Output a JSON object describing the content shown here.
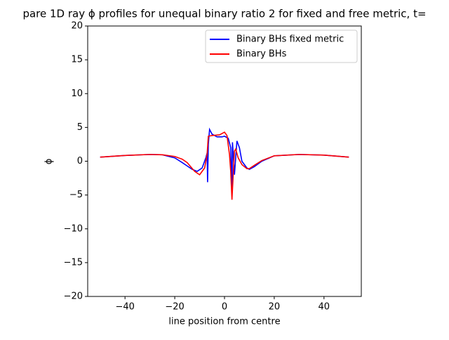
{
  "chart_data": {
    "type": "line",
    "title": "pare 1D ray ϕ profiles for unequal binary ratio 2 for fixed and free metric, t=",
    "x_label": "line position from centre",
    "y_label": "ϕ",
    "xlim": [
      -55,
      55
    ],
    "ylim": [
      -20,
      20
    ],
    "xticks": [
      {
        "value": -40,
        "label": "−40"
      },
      {
        "value": -20,
        "label": "−20"
      },
      0,
      20,
      40
    ],
    "yticks": [
      {
        "value": -20,
        "label": "−20"
      },
      {
        "value": -15,
        "label": "−15"
      },
      {
        "value": -10,
        "label": "−10"
      },
      {
        "value": -5,
        "label": "−5"
      },
      0,
      5,
      10,
      15,
      20
    ],
    "legend": "upper right",
    "series": [
      {
        "name": "Binary BHs fixed metric",
        "color": "#0000ff",
        "x": [
          -50,
          -40,
          -30,
          -25,
          -20,
          -17,
          -15,
          -13,
          -11,
          -9,
          -7.5,
          -7,
          -6.8,
          -6.5,
          -6,
          -5,
          -3,
          -1,
          0,
          1.5,
          2.5,
          3,
          3.2,
          3.6,
          4,
          5,
          6,
          7,
          9,
          10,
          12,
          15,
          20,
          30,
          40,
          50
        ],
        "values": [
          0.6,
          0.85,
          1.0,
          0.95,
          0.5,
          -0.2,
          -0.7,
          -1.2,
          -1.5,
          -1.0,
          0.5,
          1.2,
          -3.1,
          2.5,
          4.7,
          4.0,
          3.6,
          3.6,
          3.7,
          3.4,
          2.0,
          -5.0,
          2.8,
          0.5,
          -2.0,
          3.0,
          2.0,
          0.0,
          -1.0,
          -1.2,
          -0.8,
          0.0,
          0.8,
          1.0,
          0.9,
          0.6
        ]
      },
      {
        "name": "Binary BHs",
        "color": "#ff0000",
        "x": [
          -50,
          -40,
          -30,
          -25,
          -20,
          -17,
          -15,
          -12,
          -10,
          -8,
          -7,
          -6.5,
          -5,
          -2,
          0,
          1,
          2,
          2.5,
          3,
          3.5,
          4,
          4.5,
          5.5,
          7,
          9,
          10,
          12,
          15,
          20,
          30,
          40,
          50
        ],
        "values": [
          0.6,
          0.85,
          1.0,
          0.95,
          0.7,
          0.3,
          -0.2,
          -1.5,
          -2.0,
          -1.0,
          1.0,
          3.7,
          3.8,
          3.9,
          4.3,
          3.8,
          1.0,
          -1.5,
          -5.7,
          -2.0,
          1.5,
          1.8,
          0.5,
          -0.5,
          -1.1,
          -1.1,
          -0.6,
          0.1,
          0.8,
          1.0,
          0.9,
          0.6
        ]
      }
    ]
  }
}
